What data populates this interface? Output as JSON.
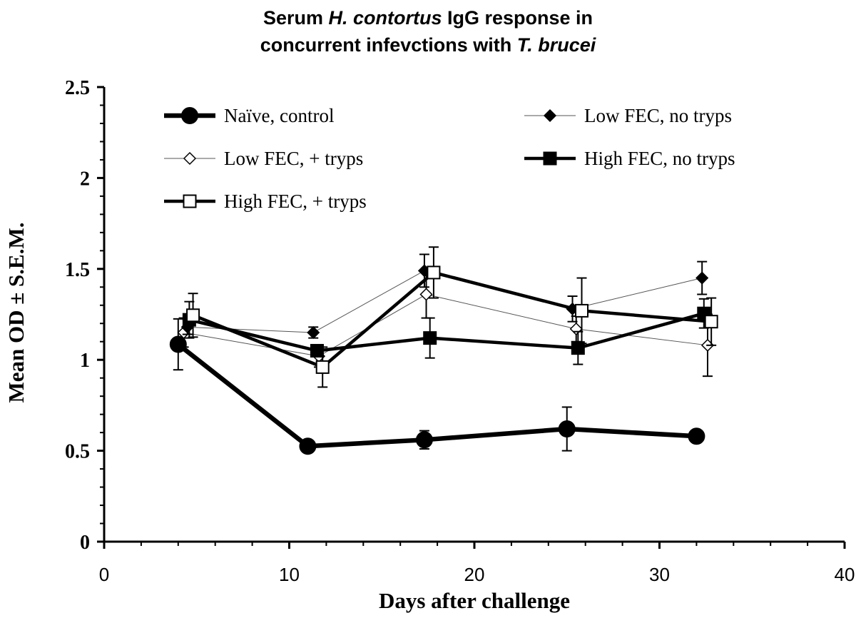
{
  "chart_data": {
    "type": "line",
    "title": {
      "line1_a": "Serum ",
      "line1_italic": "H. contortus",
      "line1_b": " IgG response in",
      "line2_a": "concurrent infevctions with ",
      "line2_italic": "T. brucei"
    },
    "xlabel": "Days after challenge",
    "ylabel": "Mean OD ± S.E.M.",
    "xlim": [
      0,
      40
    ],
    "ylim": [
      0,
      2.5
    ],
    "x_ticks": [
      0,
      10,
      20,
      30,
      40
    ],
    "y_ticks": [
      0,
      0.5,
      1,
      1.5,
      2,
      2.5
    ],
    "x_tick_labels": [
      "0",
      "10",
      "20",
      "30",
      "40"
    ],
    "y_tick_labels": [
      "0",
      "0.5",
      "1",
      "1.5",
      "2",
      "2.5"
    ],
    "legend_position": "top-inside",
    "grid": false,
    "series": [
      {
        "name": "Naïve, control",
        "marker": "circle",
        "fill": "#000000",
        "line_weight": "heavy",
        "x": [
          4,
          11,
          17.3,
          25,
          32
        ],
        "y": [
          1.085,
          0.525,
          0.56,
          0.62,
          0.58
        ],
        "err": [
          0.14,
          0.02,
          0.05,
          0.12,
          0.03
        ]
      },
      {
        "name": "Low FEC, no tryps",
        "marker": "diamond",
        "fill": "#000000",
        "line_weight": "thin",
        "x": [
          4.5,
          11.3,
          17.3,
          25.3,
          32.3
        ],
        "y": [
          1.18,
          1.15,
          1.49,
          1.28,
          1.45
        ],
        "err": [
          0.04,
          0.03,
          0.09,
          0.07,
          0.09
        ]
      },
      {
        "name": "Low FEC, + tryps",
        "marker": "diamond",
        "fill": "#ffffff",
        "line_weight": "thin",
        "x": [
          4.3,
          11.6,
          17.4,
          25.5,
          32.6
        ],
        "y": [
          1.15,
          1.02,
          1.36,
          1.17,
          1.08
        ],
        "err": [
          0.08,
          0.06,
          0.13,
          0.07,
          0.17
        ]
      },
      {
        "name": "High FEC, no tryps",
        "marker": "square",
        "fill": "#000000",
        "line_weight": "heavy",
        "x": [
          4.6,
          11.5,
          17.6,
          25.6,
          32.4
        ],
        "y": [
          1.22,
          1.05,
          1.12,
          1.065,
          1.255
        ],
        "err": [
          0.1,
          0.03,
          0.11,
          0.09,
          0.08
        ]
      },
      {
        "name": "High FEC, + tryps",
        "marker": "square",
        "fill": "#ffffff",
        "line_weight": "heavy",
        "x": [
          4.8,
          11.8,
          17.8,
          25.8,
          32.8
        ],
        "y": [
          1.245,
          0.96,
          1.48,
          1.27,
          1.21
        ],
        "err": [
          0.12,
          0.11,
          0.14,
          0.18,
          0.13
        ]
      }
    ]
  }
}
